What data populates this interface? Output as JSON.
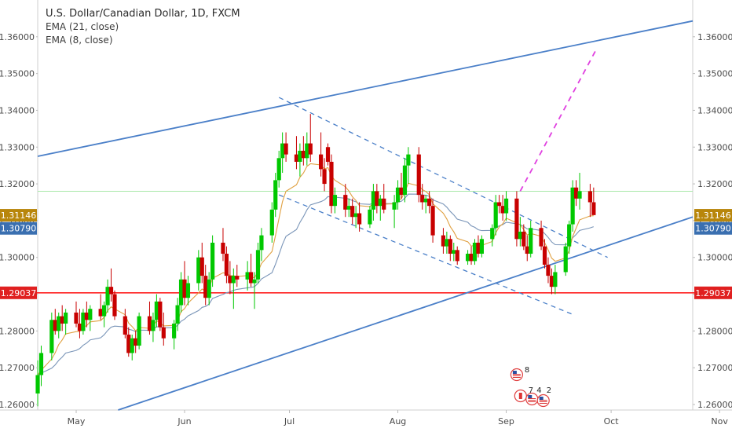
{
  "legend": {
    "symbol_title": "U.S. Dollar/Canadian Dollar, 1D, FXCM",
    "ema1": "EMA (21, close)",
    "ema2": "EMA (8, close)"
  },
  "colors": {
    "up": "#00c800",
    "down": "#c80000",
    "channel": "#4a7fc8",
    "support": "#ff2020",
    "projection": "#e040e0",
    "ema_fast": "#e0a040",
    "ema_slow": "#7a95b8",
    "tag_price": "#b8860b",
    "tag_ema": "#3a6fb0",
    "tag_support": "#e02020"
  },
  "chart_data": {
    "type": "candlestick",
    "title": "U.S. Dollar/Canadian Dollar, 1D, FXCM",
    "ylim": [
      1.2585,
      1.37
    ],
    "y_ticks": [
      "1.37000",
      "1.36000",
      "1.35000",
      "1.34000",
      "1.33000",
      "1.32000",
      "1.31000",
      "1.30000",
      "1.29000",
      "1.28000",
      "1.27000",
      "1.26000"
    ],
    "x_ticks": [
      "May",
      "Jun",
      "Jul",
      "Aug",
      "Sep",
      "Oct",
      "Nov"
    ],
    "price_tags": [
      {
        "label": "1.31146",
        "value": 1.31146,
        "kind": "price"
      },
      {
        "label": "1.30790",
        "value": 1.3079,
        "kind": "ema"
      },
      {
        "label": "1.29037",
        "value": 1.29037,
        "kind": "support"
      }
    ],
    "support_level": 1.29037,
    "series": [
      {
        "name": "EMA (8, close)"
      },
      {
        "name": "EMA (21, close)"
      }
    ],
    "events": [
      {
        "label": "8",
        "date": "Sep 4"
      },
      {
        "label": "7",
        "date": "Sep 6"
      },
      {
        "label": "4",
        "date": "Sep 7"
      },
      {
        "label": "2",
        "date": "Sep 8"
      }
    ],
    "candles": [
      {
        "d": "Apr 20",
        "o": 1.263,
        "h": 1.272,
        "l": 1.2595,
        "c": 1.268
      },
      {
        "d": "Apr 21",
        "o": 1.268,
        "h": 1.276,
        "l": 1.265,
        "c": 1.274
      },
      {
        "d": "Apr 24",
        "o": 1.274,
        "h": 1.285,
        "l": 1.272,
        "c": 1.283
      },
      {
        "d": "Apr 25",
        "o": 1.283,
        "h": 1.286,
        "l": 1.279,
        "c": 1.28
      },
      {
        "d": "Apr 26",
        "o": 1.28,
        "h": 1.285,
        "l": 1.278,
        "c": 1.284
      },
      {
        "d": "Apr 27",
        "o": 1.284,
        "h": 1.287,
        "l": 1.28,
        "c": 1.282
      },
      {
        "d": "Apr 28",
        "o": 1.282,
        "h": 1.286,
        "l": 1.279,
        "c": 1.285
      },
      {
        "d": "May 1",
        "o": 1.285,
        "h": 1.288,
        "l": 1.281,
        "c": 1.282
      },
      {
        "d": "May 2",
        "o": 1.282,
        "h": 1.286,
        "l": 1.278,
        "c": 1.28
      },
      {
        "d": "May 3",
        "o": 1.28,
        "h": 1.286,
        "l": 1.279,
        "c": 1.285
      },
      {
        "d": "May 4",
        "o": 1.285,
        "h": 1.288,
        "l": 1.281,
        "c": 1.283
      },
      {
        "d": "May 5",
        "o": 1.283,
        "h": 1.287,
        "l": 1.28,
        "c": 1.286
      },
      {
        "d": "May 8",
        "o": 1.286,
        "h": 1.29,
        "l": 1.283,
        "c": 1.284
      },
      {
        "d": "May 9",
        "o": 1.284,
        "h": 1.288,
        "l": 1.281,
        "c": 1.287
      },
      {
        "d": "May 10",
        "o": 1.287,
        "h": 1.294,
        "l": 1.285,
        "c": 1.292
      },
      {
        "d": "May 11",
        "o": 1.292,
        "h": 1.297,
        "l": 1.288,
        "c": 1.29
      },
      {
        "d": "May 12",
        "o": 1.29,
        "h": 1.291,
        "l": 1.283,
        "c": 1.284
      },
      {
        "d": "May 15",
        "o": 1.284,
        "h": 1.286,
        "l": 1.278,
        "c": 1.279
      },
      {
        "d": "May 16",
        "o": 1.279,
        "h": 1.281,
        "l": 1.273,
        "c": 1.274
      },
      {
        "d": "May 17",
        "o": 1.274,
        "h": 1.279,
        "l": 1.272,
        "c": 1.278
      },
      {
        "d": "May 18",
        "o": 1.278,
        "h": 1.28,
        "l": 1.274,
        "c": 1.276
      },
      {
        "d": "May 19",
        "o": 1.276,
        "h": 1.285,
        "l": 1.275,
        "c": 1.284
      },
      {
        "d": "May 22",
        "o": 1.284,
        "h": 1.288,
        "l": 1.279,
        "c": 1.28
      },
      {
        "d": "May 23",
        "o": 1.28,
        "h": 1.285,
        "l": 1.277,
        "c": 1.283
      },
      {
        "d": "May 24",
        "o": 1.283,
        "h": 1.29,
        "l": 1.281,
        "c": 1.288
      },
      {
        "d": "May 25",
        "o": 1.288,
        "h": 1.289,
        "l": 1.28,
        "c": 1.281
      },
      {
        "d": "May 26",
        "o": 1.281,
        "h": 1.285,
        "l": 1.276,
        "c": 1.278
      },
      {
        "d": "May 29",
        "o": 1.278,
        "h": 1.283,
        "l": 1.275,
        "c": 1.282
      },
      {
        "d": "May 30",
        "o": 1.282,
        "h": 1.289,
        "l": 1.28,
        "c": 1.287
      },
      {
        "d": "May 31",
        "o": 1.287,
        "h": 1.296,
        "l": 1.285,
        "c": 1.294
      },
      {
        "d": "Jun 1",
        "o": 1.294,
        "h": 1.299,
        "l": 1.287,
        "c": 1.289
      },
      {
        "d": "Jun 2",
        "o": 1.289,
        "h": 1.295,
        "l": 1.287,
        "c": 1.293
      },
      {
        "d": "Jun 5",
        "o": 1.293,
        "h": 1.302,
        "l": 1.291,
        "c": 1.3
      },
      {
        "d": "Jun 6",
        "o": 1.3,
        "h": 1.304,
        "l": 1.293,
        "c": 1.295
      },
      {
        "d": "Jun 7",
        "o": 1.295,
        "h": 1.298,
        "l": 1.287,
        "c": 1.289
      },
      {
        "d": "Jun 8",
        "o": 1.289,
        "h": 1.296,
        "l": 1.287,
        "c": 1.294
      },
      {
        "d": "Jun 9",
        "o": 1.294,
        "h": 1.306,
        "l": 1.292,
        "c": 1.304
      },
      {
        "d": "Jun 12",
        "o": 1.304,
        "h": 1.308,
        "l": 1.299,
        "c": 1.301
      },
      {
        "d": "Jun 13",
        "o": 1.301,
        "h": 1.303,
        "l": 1.293,
        "c": 1.295
      },
      {
        "d": "Jun 14",
        "o": 1.295,
        "h": 1.299,
        "l": 1.29,
        "c": 1.293
      },
      {
        "d": "Jun 15",
        "o": 1.293,
        "h": 1.297,
        "l": 1.286,
        "c": 1.295
      },
      {
        "d": "Jun 16",
        "o": 1.295,
        "h": 1.298,
        "l": 1.292,
        "c": 1.294
      },
      {
        "d": "Jun 19",
        "o": 1.294,
        "h": 1.299,
        "l": 1.291,
        "c": 1.296
      },
      {
        "d": "Jun 20",
        "o": 1.296,
        "h": 1.301,
        "l": 1.292,
        "c": 1.293
      },
      {
        "d": "Jun 21",
        "o": 1.293,
        "h": 1.296,
        "l": 1.286,
        "c": 1.294
      },
      {
        "d": "Jun 22",
        "o": 1.294,
        "h": 1.304,
        "l": 1.293,
        "c": 1.302
      },
      {
        "d": "Jun 23",
        "o": 1.302,
        "h": 1.308,
        "l": 1.299,
        "c": 1.306
      },
      {
        "d": "Jun 26",
        "o": 1.306,
        "h": 1.315,
        "l": 1.304,
        "c": 1.313
      },
      {
        "d": "Jun 27",
        "o": 1.313,
        "h": 1.323,
        "l": 1.311,
        "c": 1.321
      },
      {
        "d": "Jun 28",
        "o": 1.321,
        "h": 1.329,
        "l": 1.319,
        "c": 1.327
      },
      {
        "d": "Jun 29",
        "o": 1.327,
        "h": 1.334,
        "l": 1.323,
        "c": 1.331
      },
      {
        "d": "Jun 30",
        "o": 1.331,
        "h": 1.334,
        "l": 1.326,
        "c": 1.328
      },
      {
        "d": "Jul 3",
        "o": 1.328,
        "h": 1.333,
        "l": 1.324,
        "c": 1.326
      },
      {
        "d": "Jul 4",
        "o": 1.326,
        "h": 1.331,
        "l": 1.322,
        "c": 1.329
      },
      {
        "d": "Jul 5",
        "o": 1.329,
        "h": 1.333,
        "l": 1.325,
        "c": 1.327
      },
      {
        "d": "Jul 6",
        "o": 1.327,
        "h": 1.334,
        "l": 1.325,
        "c": 1.331
      },
      {
        "d": "Jul 7",
        "o": 1.331,
        "h": 1.339,
        "l": 1.326,
        "c": 1.328
      },
      {
        "d": "Jul 10",
        "o": 1.328,
        "h": 1.334,
        "l": 1.322,
        "c": 1.324
      },
      {
        "d": "Jul 11",
        "o": 1.324,
        "h": 1.327,
        "l": 1.318,
        "c": 1.32
      },
      {
        "d": "Jul 12",
        "o": 1.33,
        "h": 1.331,
        "l": 1.325,
        "c": 1.326
      },
      {
        "d": "Jul 13",
        "o": 1.326,
        "h": 1.328,
        "l": 1.312,
        "c": 1.314
      },
      {
        "d": "Jul 14",
        "o": 1.314,
        "h": 1.319,
        "l": 1.312,
        "c": 1.317
      },
      {
        "d": "Jul 17",
        "o": 1.317,
        "h": 1.32,
        "l": 1.311,
        "c": 1.313
      },
      {
        "d": "Jul 18",
        "o": 1.313,
        "h": 1.316,
        "l": 1.311,
        "c": 1.314
      },
      {
        "d": "Jul 19",
        "o": 1.314,
        "h": 1.316,
        "l": 1.309,
        "c": 1.311
      },
      {
        "d": "Jul 20",
        "o": 1.311,
        "h": 1.314,
        "l": 1.308,
        "c": 1.312
      },
      {
        "d": "Jul 21",
        "o": 1.312,
        "h": 1.315,
        "l": 1.307,
        "c": 1.309
      },
      {
        "d": "Jul 24",
        "o": 1.309,
        "h": 1.314,
        "l": 1.308,
        "c": 1.313
      },
      {
        "d": "Jul 25",
        "o": 1.313,
        "h": 1.32,
        "l": 1.31,
        "c": 1.318
      },
      {
        "d": "Jul 26",
        "o": 1.318,
        "h": 1.32,
        "l": 1.312,
        "c": 1.314
      },
      {
        "d": "Jul 27",
        "o": 1.314,
        "h": 1.317,
        "l": 1.31,
        "c": 1.316
      },
      {
        "d": "Jul 28",
        "o": 1.316,
        "h": 1.32,
        "l": 1.312,
        "c": 1.313
      },
      {
        "d": "Jul 31",
        "o": 1.313,
        "h": 1.317,
        "l": 1.308,
        "c": 1.315
      },
      {
        "d": "Aug 1",
        "o": 1.315,
        "h": 1.321,
        "l": 1.313,
        "c": 1.319
      },
      {
        "d": "Aug 2",
        "o": 1.319,
        "h": 1.323,
        "l": 1.316,
        "c": 1.317
      },
      {
        "d": "Aug 3",
        "o": 1.317,
        "h": 1.327,
        "l": 1.315,
        "c": 1.325
      },
      {
        "d": "Aug 4",
        "o": 1.325,
        "h": 1.33,
        "l": 1.32,
        "c": 1.328
      },
      {
        "d": "Aug 7",
        "o": 1.328,
        "h": 1.33,
        "l": 1.315,
        "c": 1.317
      },
      {
        "d": "Aug 8",
        "o": 1.317,
        "h": 1.32,
        "l": 1.313,
        "c": 1.315
      },
      {
        "d": "Aug 9",
        "o": 1.315,
        "h": 1.317,
        "l": 1.312,
        "c": 1.316
      },
      {
        "d": "Aug 10",
        "o": 1.316,
        "h": 1.318,
        "l": 1.312,
        "c": 1.314
      },
      {
        "d": "Aug 11",
        "o": 1.314,
        "h": 1.316,
        "l": 1.304,
        "c": 1.306
      },
      {
        "d": "Aug 14",
        "o": 1.306,
        "h": 1.308,
        "l": 1.301,
        "c": 1.303
      },
      {
        "d": "Aug 15",
        "o": 1.303,
        "h": 1.307,
        "l": 1.301,
        "c": 1.305
      },
      {
        "d": "Aug 16",
        "o": 1.305,
        "h": 1.306,
        "l": 1.299,
        "c": 1.301
      },
      {
        "d": "Aug 17",
        "o": 1.301,
        "h": 1.304,
        "l": 1.299,
        "c": 1.302
      },
      {
        "d": "Aug 18",
        "o": 1.302,
        "h": 1.303,
        "l": 1.298,
        "c": 1.299
      },
      {
        "d": "Aug 21",
        "o": 1.299,
        "h": 1.302,
        "l": 1.298,
        "c": 1.301
      },
      {
        "d": "Aug 22",
        "o": 1.301,
        "h": 1.303,
        "l": 1.298,
        "c": 1.299
      },
      {
        "d": "Aug 23",
        "o": 1.299,
        "h": 1.305,
        "l": 1.298,
        "c": 1.304
      },
      {
        "d": "Aug 24",
        "o": 1.304,
        "h": 1.306,
        "l": 1.3,
        "c": 1.301
      },
      {
        "d": "Aug 25",
        "o": 1.301,
        "h": 1.306,
        "l": 1.3,
        "c": 1.305
      },
      {
        "d": "Aug 28",
        "o": 1.305,
        "h": 1.309,
        "l": 1.303,
        "c": 1.308
      },
      {
        "d": "Aug 29",
        "o": 1.308,
        "h": 1.317,
        "l": 1.306,
        "c": 1.315
      },
      {
        "d": "Aug 30",
        "o": 1.315,
        "h": 1.317,
        "l": 1.312,
        "c": 1.314
      },
      {
        "d": "Aug 31",
        "o": 1.314,
        "h": 1.317,
        "l": 1.31,
        "c": 1.312
      },
      {
        "d": "Sep 1",
        "o": 1.312,
        "h": 1.318,
        "l": 1.31,
        "c": 1.316
      },
      {
        "d": "Sep 4",
        "o": 1.316,
        "h": 1.318,
        "l": 1.303,
        "c": 1.305
      },
      {
        "d": "Sep 5",
        "o": 1.305,
        "h": 1.311,
        "l": 1.303,
        "c": 1.307
      },
      {
        "d": "Sep 6",
        "o": 1.307,
        "h": 1.309,
        "l": 1.302,
        "c": 1.303
      },
      {
        "d": "Sep 7",
        "o": 1.303,
        "h": 1.306,
        "l": 1.299,
        "c": 1.301
      },
      {
        "d": "Sep 8",
        "o": 1.301,
        "h": 1.31,
        "l": 1.3,
        "c": 1.308
      },
      {
        "d": "Sep 11",
        "o": 1.308,
        "h": 1.31,
        "l": 1.302,
        "c": 1.303
      },
      {
        "d": "Sep 12",
        "o": 1.303,
        "h": 1.305,
        "l": 1.297,
        "c": 1.298
      },
      {
        "d": "Sep 13",
        "o": 1.298,
        "h": 1.3,
        "l": 1.293,
        "c": 1.295
      },
      {
        "d": "Sep 14",
        "o": 1.295,
        "h": 1.297,
        "l": 1.29,
        "c": 1.292
      },
      {
        "d": "Sep 15",
        "o": 1.292,
        "h": 1.298,
        "l": 1.29,
        "c": 1.296
      },
      {
        "d": "Sep 18",
        "o": 1.296,
        "h": 1.304,
        "l": 1.295,
        "c": 1.303
      },
      {
        "d": "Sep 19",
        "o": 1.303,
        "h": 1.31,
        "l": 1.301,
        "c": 1.309
      },
      {
        "d": "Sep 20",
        "o": 1.309,
        "h": 1.321,
        "l": 1.307,
        "c": 1.319
      },
      {
        "d": "Sep 21",
        "o": 1.319,
        "h": 1.321,
        "l": 1.314,
        "c": 1.316
      },
      {
        "d": "Sep 22",
        "o": 1.316,
        "h": 1.323,
        "l": 1.313,
        "c": 1.318
      },
      {
        "d": "Sep 25",
        "o": 1.318,
        "h": 1.32,
        "l": 1.311,
        "c": 1.315
      },
      {
        "d": "Sep 26",
        "o": 1.315,
        "h": 1.319,
        "l": 1.312,
        "c": 1.3115
      }
    ]
  }
}
